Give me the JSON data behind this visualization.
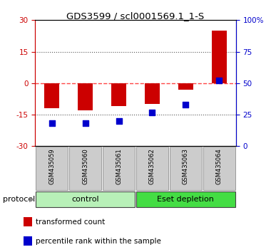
{
  "title": "GDS3599 / scl0001569.1_1-S",
  "samples": [
    "GSM435059",
    "GSM435060",
    "GSM435061",
    "GSM435062",
    "GSM435063",
    "GSM435064"
  ],
  "red_values": [
    -12.0,
    -13.0,
    -11.0,
    -10.0,
    -3.0,
    25.0
  ],
  "blue_values_pct": [
    18,
    18,
    20,
    27,
    33,
    52
  ],
  "left_ylim": [
    -30,
    30
  ],
  "right_ylim": [
    0,
    100
  ],
  "left_yticks": [
    -30,
    -15,
    0,
    15,
    30
  ],
  "right_yticks": [
    0,
    25,
    50,
    75,
    100
  ],
  "right_yticklabels": [
    "0",
    "25",
    "50",
    "75",
    "100%"
  ],
  "left_color": "#cc0000",
  "right_color": "#0000cc",
  "bar_width": 0.45,
  "square_size": 40,
  "protocol_label": "protocol",
  "legend_items": [
    {
      "label": "transformed count",
      "color": "#cc0000"
    },
    {
      "label": "percentile rank within the sample",
      "color": "#0000cc"
    }
  ],
  "hline_zero_color": "#ff4444",
  "hline_dotted_color": "#555555",
  "tick_label_color_left": "#cc0000",
  "tick_label_color_right": "#0000cc",
  "bg_main": "#ffffff",
  "bg_xlabel": "#cccccc",
  "fig_bg": "#ffffff",
  "control_color": "#b8f0b8",
  "esetdepl_color": "#44dd44"
}
